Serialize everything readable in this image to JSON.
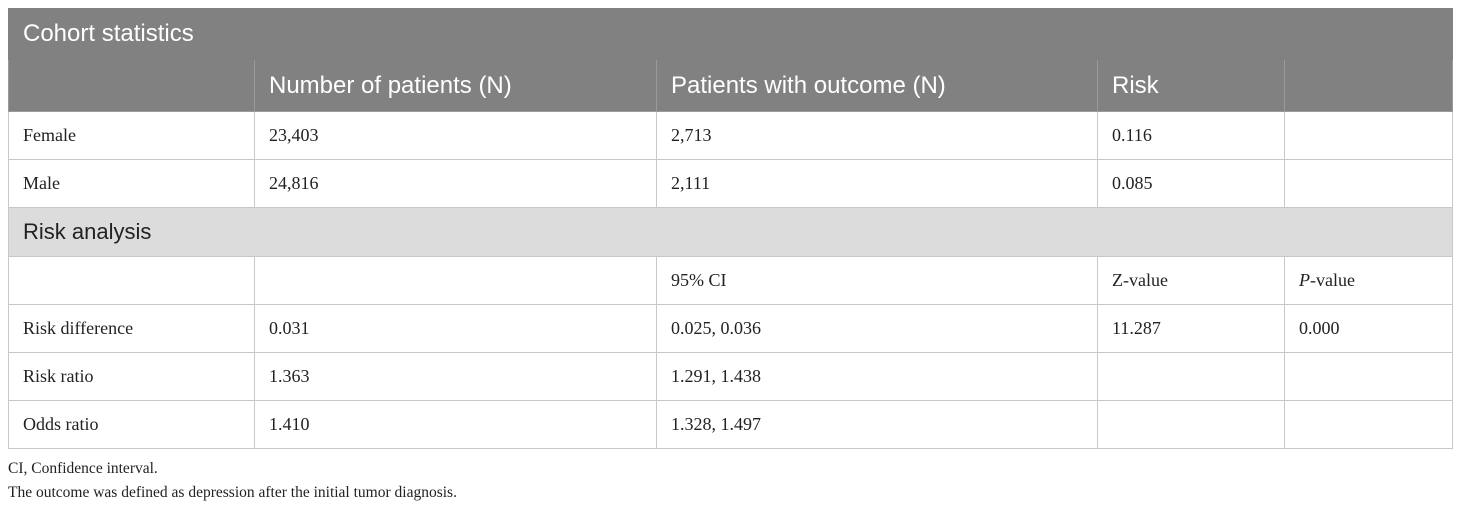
{
  "cohort": {
    "title": "Cohort statistics",
    "headers": [
      "",
      "Number of patients (N)",
      "Patients with outcome (N)",
      "Risk",
      ""
    ],
    "rows": [
      [
        "Female",
        "23,403",
        "2,713",
        "0.116",
        ""
      ],
      [
        "Male",
        "24,816",
        "2,111",
        "0.085",
        ""
      ]
    ]
  },
  "risk": {
    "title": "Risk analysis",
    "subheader": {
      "col3": "95% CI",
      "col4": "Z-value",
      "col5_italic": "P",
      "col5_rest": "-value"
    },
    "rows": [
      [
        "Risk difference",
        "0.031",
        "0.025, 0.036",
        "11.287",
        "0.000"
      ],
      [
        "Risk ratio",
        "1.363",
        "1.291, 1.438",
        "",
        ""
      ],
      [
        "Odds ratio",
        "1.410",
        "1.328, 1.497",
        "",
        ""
      ]
    ]
  },
  "footnotes": [
    "CI, Confidence interval.",
    "The outcome was defined as depression after the initial tumor diagnosis."
  ]
}
